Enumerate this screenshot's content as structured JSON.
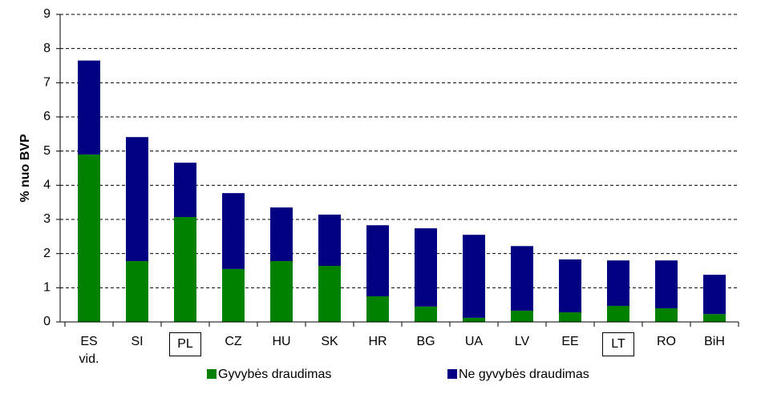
{
  "chart_data": {
    "type": "stacked_bar",
    "y_label": "% nuo BVP",
    "categories": [
      "ES vid.",
      "SI",
      "PL",
      "CZ",
      "HU",
      "SK",
      "HR",
      "BG",
      "UA",
      "LV",
      "EE",
      "LT",
      "RO",
      "BiH"
    ],
    "boxed": [
      false,
      false,
      true,
      false,
      false,
      false,
      false,
      false,
      false,
      false,
      false,
      true,
      false,
      false
    ],
    "series": [
      {
        "name": "Gyvybės draudimas",
        "color": "#008000",
        "values": [
          4.9,
          1.78,
          3.07,
          1.55,
          1.78,
          1.64,
          0.75,
          0.45,
          0.12,
          0.33,
          0.28,
          0.47,
          0.4,
          0.23
        ]
      },
      {
        "name": "Ne gyvybės draudimas",
        "color": "#000080",
        "values": [
          2.75,
          3.63,
          1.59,
          2.22,
          1.57,
          1.5,
          2.08,
          2.29,
          2.43,
          1.89,
          1.55,
          1.33,
          1.4,
          1.15
        ]
      }
    ],
    "ylim": [
      0,
      9
    ],
    "yticks": [
      0,
      1,
      2,
      3,
      4,
      5,
      6,
      7,
      8,
      9
    ],
    "grid": true,
    "legend": "bottom"
  }
}
